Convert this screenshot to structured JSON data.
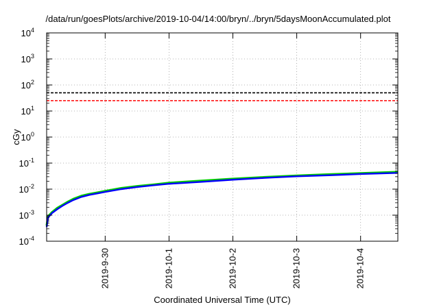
{
  "chart_data": {
    "type": "line",
    "title": "/data/run/goesPlots/archive/2019-10-04/14:00/bryn/../bryn/5daysMoonAccumulated.plot",
    "xlabel": "Coordinated Universal Time (UTC)",
    "ylabel": "cGy",
    "y_scale": "log",
    "ylim": [
      0.0001,
      10000
    ],
    "xlim": [
      "2019-09-29T02:00",
      "2019-10-04T14:00"
    ],
    "x_ticks": [
      "2019-9-30",
      "2019-10-1",
      "2019-10-2",
      "2019-10-3",
      "2019-10-4"
    ],
    "y_ticks": [
      {
        "base": "10",
        "exp": "-4",
        "value": 0.0001
      },
      {
        "base": "10",
        "exp": "-3",
        "value": 0.001
      },
      {
        "base": "10",
        "exp": "-2",
        "value": 0.01
      },
      {
        "base": "10",
        "exp": "-1",
        "value": 0.1
      },
      {
        "base": "10",
        "exp": "0",
        "value": 1
      },
      {
        "base": "10",
        "exp": "1",
        "value": 10
      },
      {
        "base": "10",
        "exp": "2",
        "value": 100
      },
      {
        "base": "10",
        "exp": "3",
        "value": 1000
      },
      {
        "base": "10",
        "exp": "4",
        "value": 10000
      }
    ],
    "grid": true,
    "thresholds": [
      {
        "value": 50,
        "color": "#000000",
        "style": "dashed"
      },
      {
        "value": 25,
        "color": "#ff0000",
        "style": "dashed"
      }
    ],
    "series": [
      {
        "color": "#00cc00",
        "x": [
          "2019-09-29T02:00",
          "2019-09-29T02:30",
          "2019-09-29T04:00",
          "2019-09-29T06:00",
          "2019-09-29T08:00",
          "2019-09-29T10:00",
          "2019-09-29T12:00",
          "2019-09-29T15:00",
          "2019-09-29T18:00",
          "2019-09-29T21:00",
          "2019-09-30T00:00",
          "2019-09-30T06:00",
          "2019-09-30T12:00",
          "2019-09-30T18:00",
          "2019-10-01T00:00",
          "2019-10-01T12:00",
          "2019-10-02T00:00",
          "2019-10-02T12:00",
          "2019-10-03T00:00",
          "2019-10-03T12:00",
          "2019-10-04T00:00",
          "2019-10-04T14:00"
        ],
        "y": [
          0.0004,
          0.0009,
          0.0013,
          0.0019,
          0.0025,
          0.0033,
          0.0042,
          0.0055,
          0.0065,
          0.0074,
          0.0085,
          0.011,
          0.013,
          0.015,
          0.0175,
          0.021,
          0.025,
          0.029,
          0.033,
          0.037,
          0.041,
          0.046
        ]
      },
      {
        "color": "#0000ff",
        "x": [
          "2019-09-29T02:00",
          "2019-09-29T02:30",
          "2019-09-29T04:00",
          "2019-09-29T06:00",
          "2019-09-29T08:00",
          "2019-09-29T10:00",
          "2019-09-29T12:00",
          "2019-09-29T15:00",
          "2019-09-29T18:00",
          "2019-09-29T21:00",
          "2019-09-30T00:00",
          "2019-09-30T06:00",
          "2019-09-30T12:00",
          "2019-09-30T18:00",
          "2019-10-01T00:00",
          "2019-10-01T12:00",
          "2019-10-02T00:00",
          "2019-10-02T12:00",
          "2019-10-03T00:00",
          "2019-10-03T12:00",
          "2019-10-04T00:00",
          "2019-10-04T14:00"
        ],
        "y": [
          0.00035,
          0.0008,
          0.0012,
          0.0017,
          0.0023,
          0.003,
          0.0038,
          0.005,
          0.006,
          0.0068,
          0.0078,
          0.01,
          0.012,
          0.014,
          0.016,
          0.019,
          0.023,
          0.027,
          0.031,
          0.034,
          0.038,
          0.042
        ]
      }
    ]
  }
}
